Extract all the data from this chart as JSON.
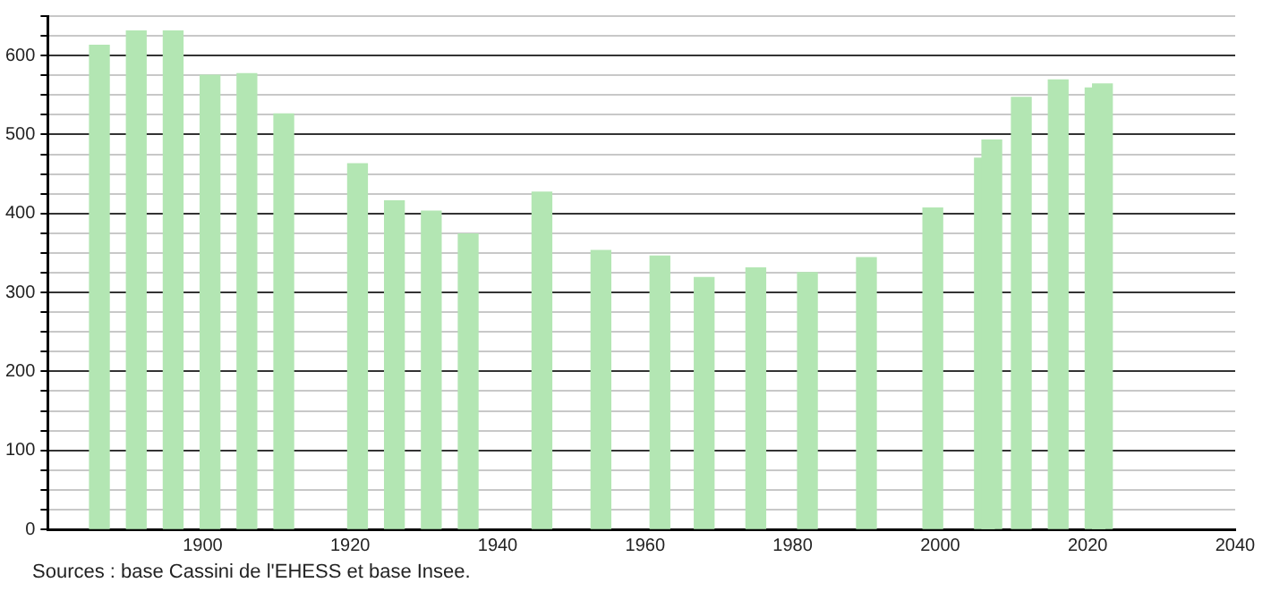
{
  "chart_data": {
    "type": "bar",
    "x": [
      1886,
      1891,
      1896,
      1901,
      1906,
      1911,
      1921,
      1926,
      1931,
      1936,
      1946,
      1954,
      1962,
      1968,
      1975,
      1982,
      1990,
      1999,
      2006,
      2007,
      2011,
      2016,
      2021,
      2022
    ],
    "values": [
      613,
      631,
      631,
      575,
      577,
      526,
      463,
      416,
      403,
      374,
      427,
      353,
      346,
      319,
      331,
      325,
      344,
      407,
      470,
      493,
      547,
      569,
      559,
      564
    ],
    "color": "#b3e6b3",
    "xlim": [
      1879,
      2040
    ],
    "xticks": [
      1900,
      1920,
      1940,
      1960,
      1980,
      2000,
      2020,
      2040
    ],
    "ylim": [
      0,
      650
    ],
    "yticks": [
      0,
      {
        "value": 25,
        "label": null
      },
      {
        "value": 50,
        "label": null
      },
      {
        "value": 75,
        "label": null
      },
      100,
      {
        "value": 125,
        "label": null
      },
      {
        "value": 150,
        "label": null
      },
      {
        "value": 175,
        "label": null
      },
      200,
      {
        "value": 225,
        "label": null
      },
      {
        "value": 250,
        "label": null
      },
      {
        "value": 275,
        "label": null
      },
      300,
      {
        "value": 325,
        "label": null
      },
      {
        "value": 350,
        "label": null
      },
      {
        "value": 375,
        "label": null
      },
      400,
      {
        "value": 425,
        "label": null
      },
      {
        "value": 450,
        "label": null
      },
      {
        "value": 475,
        "label": null
      },
      500,
      {
        "value": 525,
        "label": null
      },
      {
        "value": 550,
        "label": null
      },
      {
        "value": 575,
        "label": null
      },
      600,
      {
        "value": 625,
        "label": null
      },
      {
        "value": 650,
        "label": null
      }
    ],
    "grid": "y",
    "annotations": [
      "Sources : base Cassini de l'EHESS et base Insee."
    ]
  }
}
